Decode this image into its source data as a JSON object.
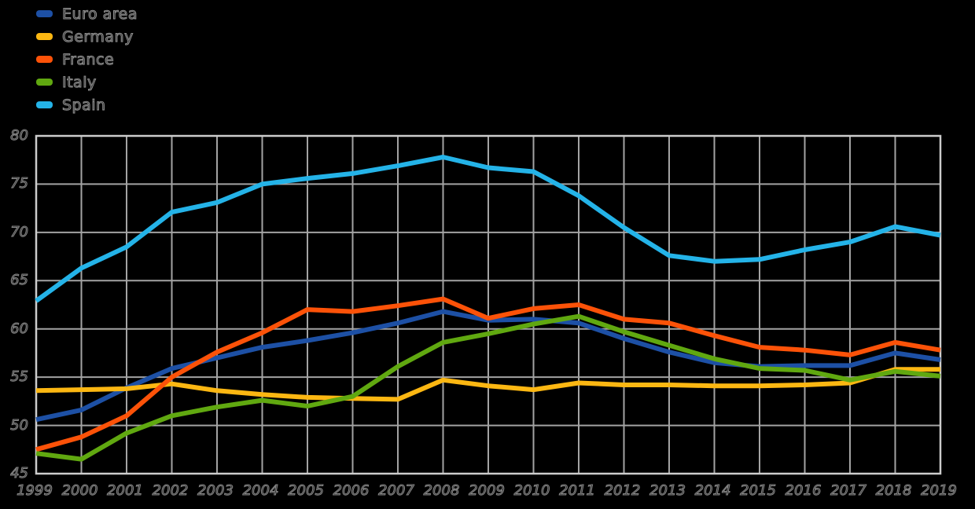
{
  "chart_data": {
    "type": "line",
    "categories": [
      "1999",
      "2000",
      "2001",
      "2002",
      "2003",
      "2004",
      "2005",
      "2006",
      "2007",
      "2008",
      "2009",
      "2010",
      "2011",
      "2012",
      "2013",
      "2014",
      "2015",
      "2016",
      "2017",
      "2018",
      "2019"
    ],
    "series": [
      {
        "name": "Euro area",
        "color": "#1d50a5",
        "values": [
          50.6,
          51.6,
          53.9,
          55.9,
          57.0,
          58.1,
          58.8,
          59.6,
          60.6,
          61.8,
          60.9,
          61.0,
          60.6,
          59.0,
          57.6,
          56.5,
          56.1,
          56.2,
          56.2,
          57.5,
          56.8
        ]
      },
      {
        "name": "Germany",
        "color": "#fcb712",
        "values": [
          53.6,
          53.7,
          53.8,
          54.3,
          53.6,
          53.2,
          52.9,
          52.8,
          52.7,
          54.7,
          54.1,
          53.7,
          54.4,
          54.2,
          54.2,
          54.1,
          54.1,
          54.2,
          54.4,
          55.8,
          55.8
        ]
      },
      {
        "name": "France",
        "color": "#fc5208",
        "values": [
          47.5,
          48.8,
          51.0,
          55.0,
          57.6,
          59.6,
          62.0,
          61.8,
          62.4,
          63.1,
          61.1,
          62.1,
          62.5,
          61.0,
          60.6,
          59.3,
          58.1,
          57.8,
          57.3,
          58.6,
          57.8
        ]
      },
      {
        "name": "Italy",
        "color": "#60a810",
        "values": [
          47.1,
          46.5,
          49.2,
          51.0,
          51.9,
          52.6,
          52.0,
          53.0,
          56.1,
          58.6,
          59.5,
          60.5,
          61.3,
          59.7,
          58.3,
          56.9,
          55.9,
          55.7,
          54.7,
          55.6,
          55.1
        ]
      },
      {
        "name": "Spain",
        "color": "#24b3e8",
        "values": [
          62.9,
          66.3,
          68.5,
          72.1,
          73.1,
          75.0,
          75.6,
          76.1,
          76.9,
          77.8,
          76.7,
          76.3,
          73.8,
          70.5,
          67.6,
          67.0,
          67.2,
          68.2,
          69.0,
          70.6,
          69.7
        ]
      }
    ],
    "title": "",
    "xlabel": "",
    "ylabel": "",
    "ylim": [
      45,
      80
    ],
    "yticks": [
      45,
      50,
      55,
      60,
      65,
      70,
      75,
      80
    ],
    "grid": true,
    "legend_position": "top-left"
  },
  "colors": {
    "background": "#000000",
    "gridline": "#a3a3a3",
    "frame": "#cccccc",
    "tick_text": "#878787"
  }
}
